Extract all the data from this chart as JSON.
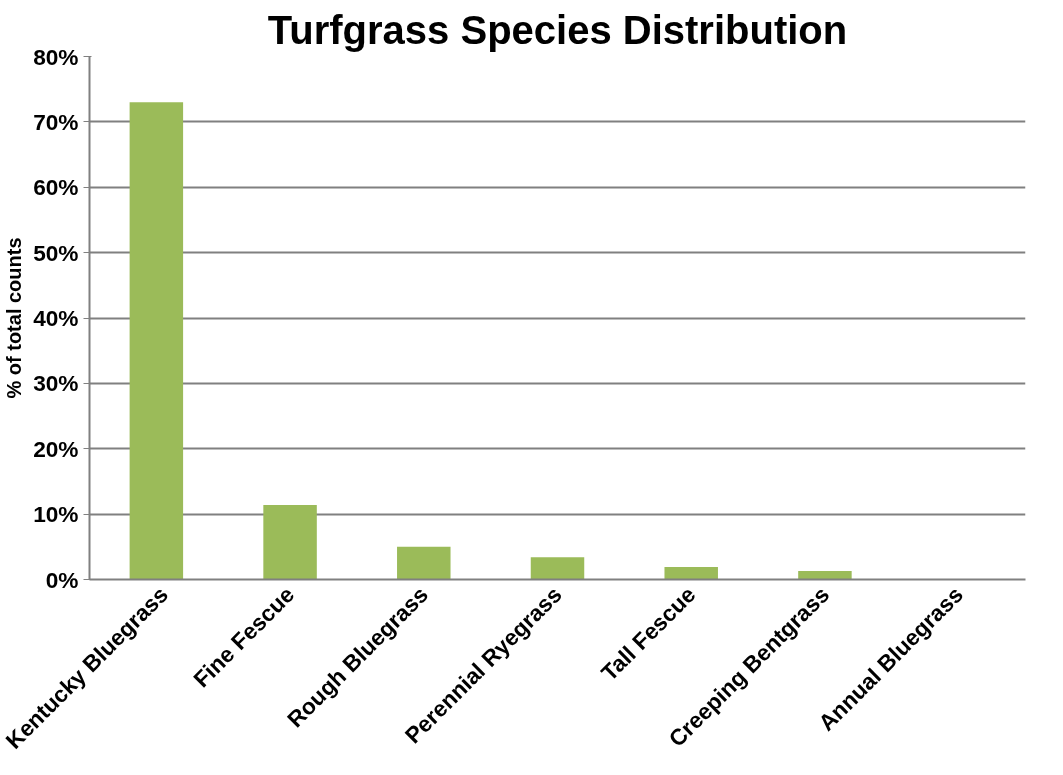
{
  "chart_data": {
    "type": "bar",
    "title": "Turfgrass Species Distribution",
    "ylabel": "% of total counts",
    "categories": [
      "Kentucky Bluegrass",
      "Fine Fescue",
      "Rough Bluegrass",
      "Perennial Ryegrass",
      "Tall Fescue",
      "Creeping Bentgrass",
      "Annual Bluegrass"
    ],
    "values": [
      73,
      11.4,
      5.0,
      3.4,
      1.9,
      1.3,
      0
    ],
    "color": "#9bbb59",
    "ylim": [
      0,
      80
    ],
    "yticks": [
      {
        "value": 0,
        "label": "0%"
      },
      {
        "value": 10,
        "label": "10%"
      },
      {
        "value": 20,
        "label": "20%"
      },
      {
        "value": 30,
        "label": "30%"
      },
      {
        "value": 40,
        "label": "40%"
      },
      {
        "value": 50,
        "label": "50%"
      },
      {
        "value": 60,
        "label": "60%"
      },
      {
        "value": 70,
        "label": "70%"
      },
      {
        "value": 80,
        "label": "80%"
      }
    ],
    "grid": "y"
  }
}
